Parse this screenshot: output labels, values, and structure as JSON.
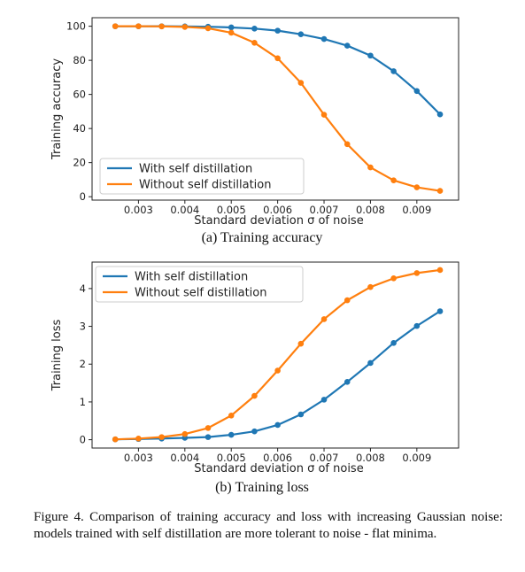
{
  "figure_caption": "Figure 4. Comparison of training accuracy and loss with increasing Gaussian noise: models trained with self distillation are more tolerant to noise - flat minima.",
  "colors": {
    "with": "#1f77b4",
    "without": "#ff7f0e"
  },
  "chart_data": [
    {
      "type": "line",
      "subcaption": "(a) Training accuracy",
      "xlabel": "Standard deviation σ of noise",
      "ylabel": "Training accuracy",
      "xlim": [
        0.002,
        0.0099
      ],
      "ylim": [
        -2,
        105
      ],
      "xticks": [
        "0.003",
        "0.004",
        "0.005",
        "0.006",
        "0.007",
        "0.008",
        "0.009"
      ],
      "yticks": [
        "0",
        "20",
        "40",
        "60",
        "80",
        "100"
      ],
      "legend_position": "lower-left",
      "grid": false,
      "x": [
        0.0025,
        0.003,
        0.0035,
        0.004,
        0.0045,
        0.005,
        0.0055,
        0.006,
        0.0065,
        0.007,
        0.0075,
        0.008,
        0.0085,
        0.009,
        0.0095
      ],
      "series": [
        {
          "name": "With self distillation",
          "values": [
            100,
            100,
            100,
            99.9,
            99.7,
            99.3,
            98.6,
            97.4,
            95.3,
            92.5,
            88.6,
            82.8,
            73.6,
            62.0,
            48.3
          ]
        },
        {
          "name": "Without self distillation",
          "values": [
            100,
            100,
            99.9,
            99.6,
            98.8,
            96.2,
            90.3,
            81.2,
            66.8,
            48.1,
            30.8,
            17.2,
            9.6,
            5.5,
            3.4
          ]
        }
      ]
    },
    {
      "type": "line",
      "subcaption": "(b) Training loss",
      "xlabel": "Standard deviation σ of noise",
      "ylabel": "Training loss",
      "xlim": [
        0.002,
        0.0099
      ],
      "ylim": [
        -0.22,
        4.7
      ],
      "xticks": [
        "0.003",
        "0.004",
        "0.005",
        "0.006",
        "0.007",
        "0.008",
        "0.009"
      ],
      "yticks": [
        "0",
        "1",
        "2",
        "3",
        "4"
      ],
      "legend_position": "upper-left",
      "grid": false,
      "x": [
        0.0025,
        0.003,
        0.0035,
        0.004,
        0.0045,
        0.005,
        0.0055,
        0.006,
        0.0065,
        0.007,
        0.0075,
        0.008,
        0.0085,
        0.009,
        0.0095
      ],
      "series": [
        {
          "name": "With self distillation",
          "values": [
            0.01,
            0.02,
            0.03,
            0.05,
            0.07,
            0.13,
            0.22,
            0.39,
            0.67,
            1.06,
            1.53,
            2.03,
            2.56,
            3.01,
            3.4
          ]
        },
        {
          "name": "Without self distillation",
          "values": [
            0.01,
            0.03,
            0.07,
            0.15,
            0.31,
            0.64,
            1.16,
            1.83,
            2.54,
            3.19,
            3.69,
            4.04,
            4.27,
            4.41,
            4.49
          ]
        }
      ]
    }
  ]
}
